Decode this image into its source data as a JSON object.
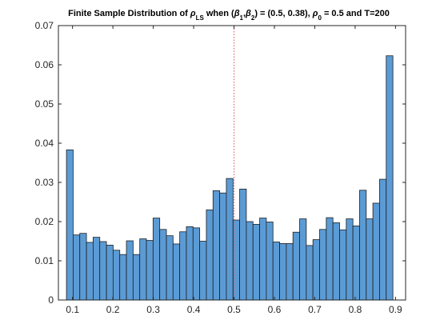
{
  "chart_data": {
    "type": "bar",
    "title_parts": {
      "a": "Finite Sample Distribution of ",
      "rho": "ρ",
      "ls": "LS",
      "b": " when (",
      "beta": "β",
      "one": "1",
      "comma": ",",
      "two": "2",
      "c": ") = (0.5, 0.38),  ",
      "zero": "0",
      "d": " = 0.5 and T=200"
    },
    "xlabel": "",
    "ylabel": "",
    "xlim": [
      0.065,
      0.925
    ],
    "ylim": [
      0,
      0.07
    ],
    "xticks": [
      0.1,
      0.2,
      0.3,
      0.4,
      0.5,
      0.6,
      0.7,
      0.8,
      0.9
    ],
    "xtick_labels": [
      "0.1",
      "0.2",
      "0.3",
      "0.4",
      "0.5",
      "0.6",
      "0.7",
      "0.8",
      "0.9"
    ],
    "yticks": [
      0,
      0.01,
      0.02,
      0.03,
      0.04,
      0.05,
      0.06,
      0.07
    ],
    "ytick_labels": [
      "0",
      "0.01",
      "0.02",
      "0.03",
      "0.04",
      "0.05",
      "0.06",
      "0.07"
    ],
    "bin_start": 0.085,
    "bin_width": 0.0165,
    "values": [
      0.0383,
      0.0166,
      0.017,
      0.0147,
      0.016,
      0.0149,
      0.014,
      0.0127,
      0.0116,
      0.0151,
      0.0116,
      0.0156,
      0.0152,
      0.0209,
      0.018,
      0.0164,
      0.0143,
      0.0174,
      0.0187,
      0.0184,
      0.015,
      0.023,
      0.0279,
      0.0273,
      0.031,
      0.0204,
      0.0283,
      0.02,
      0.0193,
      0.0209,
      0.0199,
      0.0148,
      0.0144,
      0.0144,
      0.0173,
      0.0207,
      0.0139,
      0.0154,
      0.018,
      0.021,
      0.0197,
      0.0179,
      0.0207,
      0.0189,
      0.028,
      0.0207,
      0.0247,
      0.0308,
      0.0623
    ],
    "reference_line_x": 0.5,
    "bar_color": "#5b9bd5",
    "bar_edge_color": "#1f1f1f",
    "reference_line_color": "#d9534f",
    "grid": false,
    "legend": false
  }
}
